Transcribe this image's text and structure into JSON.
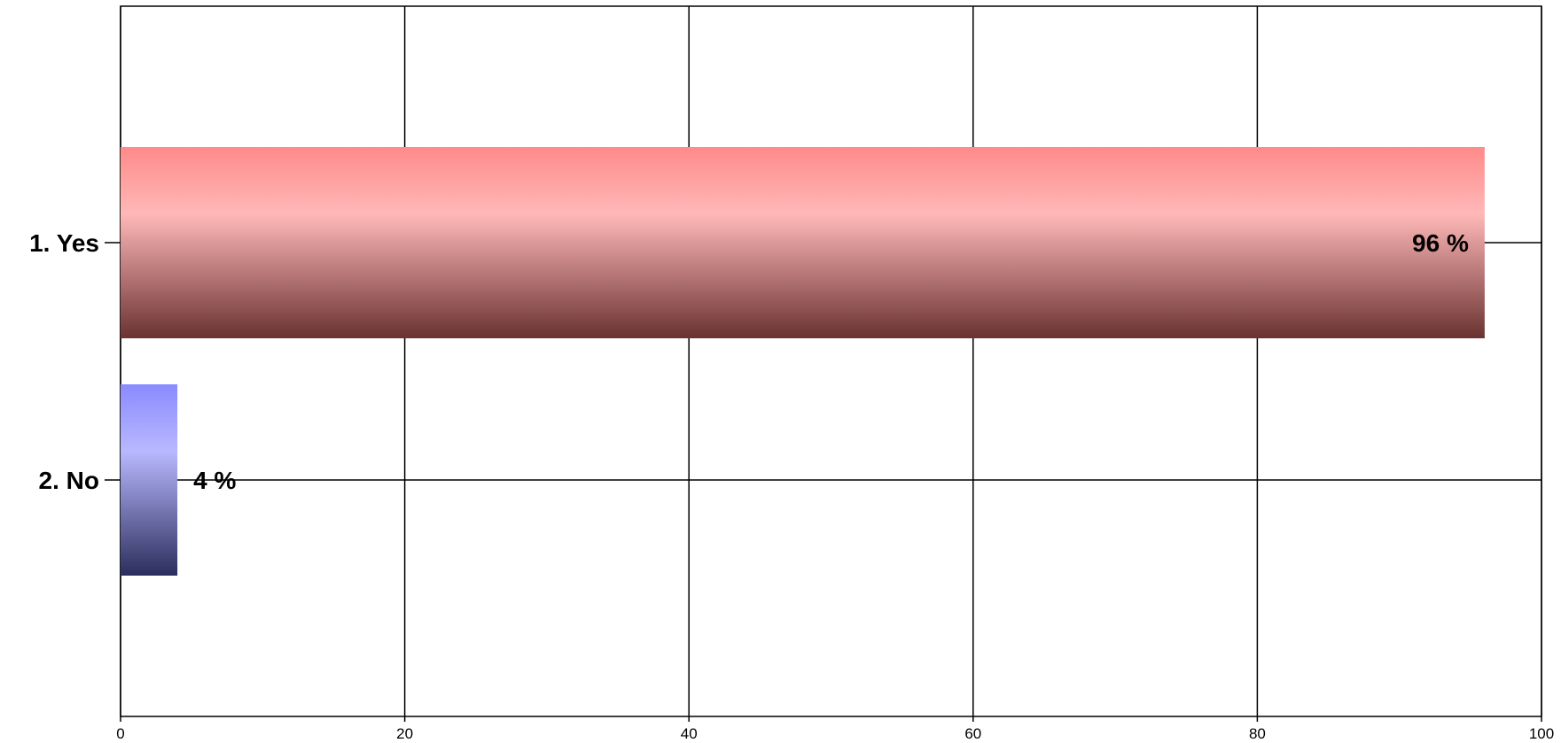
{
  "chart_data": {
    "type": "bar",
    "orientation": "horizontal",
    "categories": [
      "1. Yes",
      "2. No"
    ],
    "values": [
      96,
      4
    ],
    "data_labels": [
      "96 %",
      "4 %"
    ],
    "title": "",
    "xlabel": "",
    "ylabel": "",
    "xlim": [
      0,
      100
    ],
    "x_ticks": [
      0,
      20,
      40,
      60,
      80,
      100
    ],
    "x_tick_labels": [
      "0",
      "20",
      "40",
      "60",
      "80",
      "100"
    ],
    "grid": true,
    "legend": "none",
    "colors": [
      {
        "top": "#ff8a8a",
        "mid": "#ffb8b8",
        "bottom": "#6a3232"
      },
      {
        "top": "#8a8aff",
        "mid": "#b8b8ff",
        "bottom": "#2b2e5c"
      }
    ],
    "grid_color": "#000000"
  }
}
